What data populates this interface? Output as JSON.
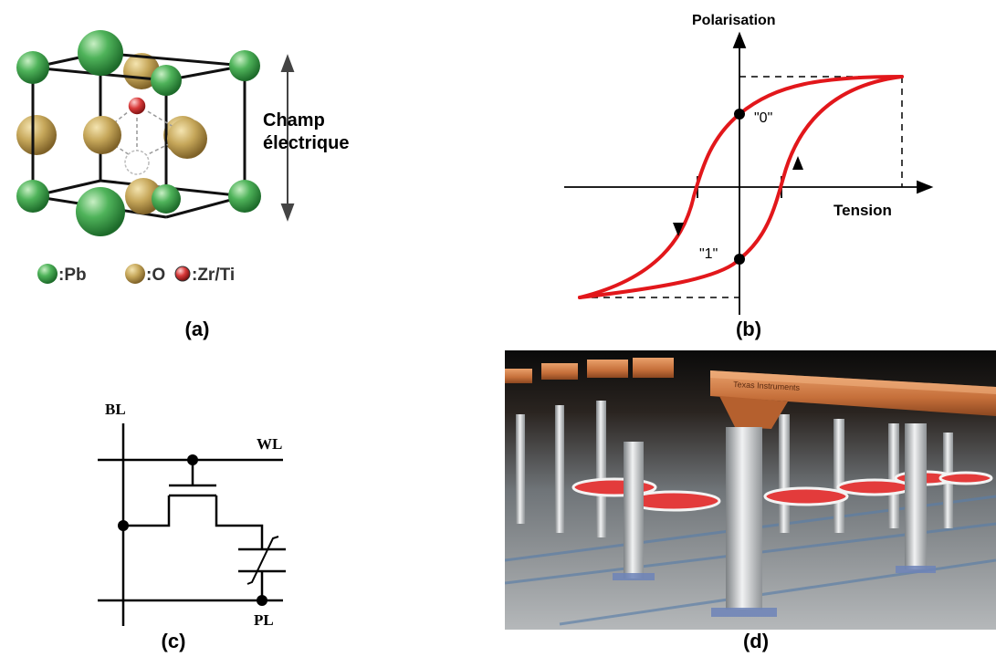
{
  "panel_a": {
    "caption": "(a)",
    "field_label_line1": "Champ",
    "field_label_line2": "électrique",
    "legend": [
      {
        "label": ":Pb",
        "color": "#3ea34a",
        "icon": "pb-atom-icon"
      },
      {
        "label": ":O",
        "color": "#c8a858",
        "icon": "o-atom-icon"
      },
      {
        "label": ":Zr/Ti",
        "color": "#d83a3a",
        "icon": "zr-ti-atom-icon"
      }
    ]
  },
  "panel_b": {
    "caption": "(b)",
    "y_axis_label": "Polarisation",
    "x_axis_label": "Tension",
    "point_0_label": "\"0\"",
    "point_1_label": "\"1\"",
    "curve_color": "#e2171b"
  },
  "panel_c": {
    "caption": "(c)",
    "bl_label": "BL",
    "wl_label": "WL",
    "pl_label": "PL"
  },
  "panel_d": {
    "caption": "(d)",
    "chip_brand": "Texas Instruments"
  }
}
